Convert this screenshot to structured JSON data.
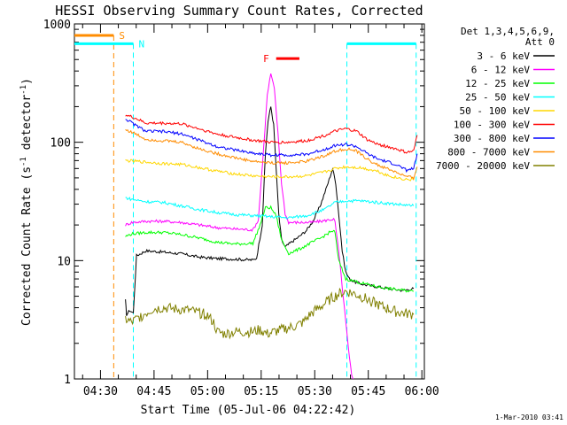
{
  "chart_data": {
    "type": "line",
    "title": "HESSI Observing Summary Count Rates, Corrected",
    "xlabel": "Start Time (05-Jul-06 04:22:42)",
    "ylabel_main": "Corrected Count Rate (s",
    "ylabel_sup1": "-1",
    "ylabel_mid": " detector",
    "ylabel_sup2": "-1",
    "ylabel_end": ")",
    "footer": "1-Mar-2010 03:41",
    "y_scale": "log",
    "ylim": [
      1,
      1000
    ],
    "xlim_minutes": [
      0,
      98
    ],
    "x_ticks": [
      {
        "label": "04:30",
        "value": 7.3
      },
      {
        "label": "04:45",
        "value": 22.3
      },
      {
        "label": "05:00",
        "value": 37.3
      },
      {
        "label": "05:15",
        "value": 52.3
      },
      {
        "label": "05:30",
        "value": 67.3
      },
      {
        "label": "05:45",
        "value": 82.3
      },
      {
        "label": "06:00",
        "value": 97.3
      }
    ],
    "y_ticks": [
      {
        "label": "1",
        "value": 1
      },
      {
        "label": "10",
        "value": 10
      },
      {
        "label": "100",
        "value": 100
      },
      {
        "label": "1000",
        "value": 1000
      }
    ],
    "legend": {
      "placement": "right",
      "title1": "Det 1,3,4,5,6,9,",
      "title2": "Att 0"
    },
    "series": [
      {
        "name": "3 - 6 keV",
        "color": "#000000",
        "points": [
          [
            14.3,
            4.6
          ],
          [
            14.6,
            3.5
          ],
          [
            15.5,
            3.8
          ],
          [
            16.5,
            3.6
          ],
          [
            17.4,
            11.0
          ],
          [
            20,
            12.1
          ],
          [
            25,
            11.8
          ],
          [
            30,
            11.4
          ],
          [
            35,
            10.7
          ],
          [
            40,
            10.4
          ],
          [
            45,
            10.3
          ],
          [
            50,
            10.1
          ],
          [
            51,
            10.5
          ],
          [
            52.6,
            20
          ],
          [
            53.5,
            80
          ],
          [
            54.2,
            150
          ],
          [
            55,
            200
          ],
          [
            55.8,
            140
          ],
          [
            56.5,
            60
          ],
          [
            57.2,
            25
          ],
          [
            58,
            15
          ],
          [
            59,
            13
          ],
          [
            61,
            14.5
          ],
          [
            63,
            16
          ],
          [
            65,
            18
          ],
          [
            67,
            22
          ],
          [
            69,
            30
          ],
          [
            71,
            45
          ],
          [
            72.3,
            60
          ],
          [
            73.2,
            45
          ],
          [
            74,
            25
          ],
          [
            75,
            12
          ],
          [
            76,
            8
          ],
          [
            77,
            7
          ],
          [
            79,
            6.5
          ],
          [
            82,
            6.2
          ],
          [
            85,
            6.0
          ],
          [
            88,
            5.8
          ],
          [
            92,
            5.6
          ],
          [
            95,
            5.8
          ]
        ]
      },
      {
        "name": "6 - 12 keV",
        "color": "#ff00ff",
        "points": [
          [
            14.3,
            20
          ],
          [
            16,
            21
          ],
          [
            20,
            21.5
          ],
          [
            25,
            21.5
          ],
          [
            30,
            21
          ],
          [
            35,
            20
          ],
          [
            40,
            19
          ],
          [
            45,
            18.5
          ],
          [
            50,
            18.2
          ],
          [
            51.5,
            22
          ],
          [
            53,
            90
          ],
          [
            54,
            250
          ],
          [
            55,
            380
          ],
          [
            56,
            280
          ],
          [
            57,
            120
          ],
          [
            58,
            45
          ],
          [
            59,
            25
          ],
          [
            60,
            21
          ],
          [
            63,
            21
          ],
          [
            66,
            21
          ],
          [
            69,
            21.5
          ],
          [
            71,
            22
          ],
          [
            72.6,
            22.5
          ],
          [
            73,
            21
          ],
          [
            74,
            12
          ],
          [
            75,
            6
          ],
          [
            76,
            3
          ],
          [
            77,
            1.5
          ],
          [
            78,
            0.9
          ]
        ]
      },
      {
        "name": "12 - 25 keV",
        "color": "#00ff00",
        "points": [
          [
            14.3,
            16
          ],
          [
            16,
            16.8
          ],
          [
            20,
            17.3
          ],
          [
            25,
            17.3
          ],
          [
            30,
            16.6
          ],
          [
            35,
            15.5
          ],
          [
            40,
            14.3
          ],
          [
            45,
            13.8
          ],
          [
            50,
            14
          ],
          [
            52,
            20
          ],
          [
            53.5,
            28
          ],
          [
            55,
            28
          ],
          [
            56.5,
            24
          ],
          [
            58,
            15
          ],
          [
            60,
            11.5
          ],
          [
            63,
            12.5
          ],
          [
            66,
            14
          ],
          [
            69,
            15.5
          ],
          [
            71,
            17
          ],
          [
            72.6,
            18
          ],
          [
            73,
            17
          ],
          [
            74,
            10
          ],
          [
            76,
            7
          ],
          [
            80,
            6.5
          ],
          [
            85,
            6.0
          ],
          [
            90,
            5.7
          ],
          [
            95,
            5.5
          ]
        ]
      },
      {
        "name": "25 - 50 keV",
        "color": "#00ffff",
        "points": [
          [
            14.3,
            34
          ],
          [
            16,
            33
          ],
          [
            20,
            31.5
          ],
          [
            25,
            31
          ],
          [
            30,
            29
          ],
          [
            35,
            27
          ],
          [
            40,
            25.5
          ],
          [
            45,
            24.5
          ],
          [
            50,
            24
          ],
          [
            55,
            23.5
          ],
          [
            60,
            23
          ],
          [
            65,
            24
          ],
          [
            70,
            27
          ],
          [
            73,
            31
          ],
          [
            76,
            32
          ],
          [
            80,
            32
          ],
          [
            85,
            31
          ],
          [
            90,
            30
          ],
          [
            95,
            29
          ]
        ]
      },
      {
        "name": "50 - 100 keV",
        "color": "#ffd700",
        "points": [
          [
            14.3,
            70
          ],
          [
            17,
            69
          ],
          [
            20,
            68
          ],
          [
            25,
            66
          ],
          [
            30,
            65
          ],
          [
            35,
            61
          ],
          [
            40,
            57
          ],
          [
            45,
            54
          ],
          [
            50,
            52
          ],
          [
            55,
            51
          ],
          [
            60,
            51
          ],
          [
            65,
            52
          ],
          [
            70,
            56
          ],
          [
            73,
            60
          ],
          [
            76,
            62
          ],
          [
            80,
            61
          ],
          [
            85,
            57
          ],
          [
            88,
            52
          ],
          [
            92,
            49
          ],
          [
            95,
            48
          ]
        ]
      },
      {
        "name": "100 - 300 keV",
        "color": "#ff0000",
        "points": [
          [
            14.3,
            170
          ],
          [
            17,
            160
          ],
          [
            20,
            145
          ],
          [
            25,
            145
          ],
          [
            30,
            143
          ],
          [
            35,
            130
          ],
          [
            40,
            117
          ],
          [
            45,
            110
          ],
          [
            50,
            104
          ],
          [
            55,
            100
          ],
          [
            60,
            100
          ],
          [
            65,
            103
          ],
          [
            70,
            114
          ],
          [
            73,
            124
          ],
          [
            76,
            130
          ],
          [
            79,
            124
          ],
          [
            82,
            105
          ],
          [
            85,
            96
          ],
          [
            90,
            88
          ],
          [
            93,
            82
          ],
          [
            95,
            84
          ],
          [
            96,
            115
          ]
        ]
      },
      {
        "name": "300 - 800 keV",
        "color": "#0000ff",
        "points": [
          [
            14.3,
            158
          ],
          [
            17,
            140
          ],
          [
            20,
            124
          ],
          [
            25,
            123
          ],
          [
            30,
            118
          ],
          [
            35,
            104
          ],
          [
            40,
            92
          ],
          [
            45,
            86
          ],
          [
            50,
            81
          ],
          [
            55,
            78
          ],
          [
            60,
            78
          ],
          [
            65,
            79
          ],
          [
            70,
            87
          ],
          [
            73,
            94
          ],
          [
            76,
            96
          ],
          [
            79,
            92
          ],
          [
            82,
            80
          ],
          [
            85,
            72
          ],
          [
            90,
            65
          ],
          [
            93,
            58
          ],
          [
            95,
            60
          ],
          [
            96,
            80
          ]
        ]
      },
      {
        "name": "800 - 7000 keV",
        "color": "#ff8c00",
        "points": [
          [
            14.3,
            128
          ],
          [
            17,
            118
          ],
          [
            20,
            106
          ],
          [
            25,
            103
          ],
          [
            30,
            100
          ],
          [
            35,
            88
          ],
          [
            40,
            80
          ],
          [
            45,
            74
          ],
          [
            50,
            69
          ],
          [
            55,
            67
          ],
          [
            60,
            67
          ],
          [
            65,
            69
          ],
          [
            70,
            77
          ],
          [
            73,
            84
          ],
          [
            76,
            88
          ],
          [
            79,
            84
          ],
          [
            82,
            72
          ],
          [
            85,
            64
          ],
          [
            90,
            56
          ],
          [
            93,
            51
          ],
          [
            95,
            50
          ],
          [
            96,
            62
          ]
        ]
      },
      {
        "name": "7000 - 20000 keV",
        "color": "#808000",
        "points": [
          [
            14.3,
            3.2
          ],
          [
            16,
            3.0
          ],
          [
            18,
            3.3
          ],
          [
            20,
            3.6
          ],
          [
            22,
            3.9
          ],
          [
            25,
            4.0
          ],
          [
            28,
            3.9
          ],
          [
            32,
            3.8
          ],
          [
            35,
            3.6
          ],
          [
            37,
            3.5
          ],
          [
            39,
            3.0
          ],
          [
            40,
            2.5
          ],
          [
            42,
            2.4
          ],
          [
            45,
            2.5
          ],
          [
            48,
            2.5
          ],
          [
            50,
            2.5
          ],
          [
            52,
            2.6
          ],
          [
            54,
            2.4
          ],
          [
            56,
            2.5
          ],
          [
            58,
            2.6
          ],
          [
            60,
            2.7
          ],
          [
            62,
            2.8
          ],
          [
            64,
            3.0
          ],
          [
            66,
            3.5
          ],
          [
            68,
            3.9
          ],
          [
            70,
            4.3
          ],
          [
            72,
            4.8
          ],
          [
            74,
            5.2
          ],
          [
            76,
            5.5
          ],
          [
            78,
            5.3
          ],
          [
            80,
            5.0
          ],
          [
            82,
            4.7
          ],
          [
            84,
            4.4
          ],
          [
            86,
            4.1
          ],
          [
            88,
            3.9
          ],
          [
            90,
            3.7
          ],
          [
            92,
            3.6
          ],
          [
            95,
            3.5
          ]
        ]
      }
    ],
    "markers": [
      {
        "label": "S",
        "color": "#ff8c00",
        "x_start": 0,
        "x_end": 11.0,
        "level": 800,
        "vline": 11.0
      },
      {
        "label": "N",
        "color": "#00ffff",
        "x_start": 0,
        "x_end": 16.5,
        "level": 680,
        "vline": 16.5
      },
      {
        "label": "",
        "color": "#00ffff",
        "x_start": 76.3,
        "x_end": 95.7,
        "level": 680,
        "vline": 76.3
      },
      {
        "label": "",
        "color": "#00ffff",
        "x_start": 95.7,
        "x_end": 95.7,
        "level": 680,
        "vline": 95.7
      },
      {
        "label": "F",
        "color": "#ff0000",
        "x_start": 56.5,
        "x_end": 63.0,
        "level": 510,
        "vline": null
      }
    ]
  }
}
